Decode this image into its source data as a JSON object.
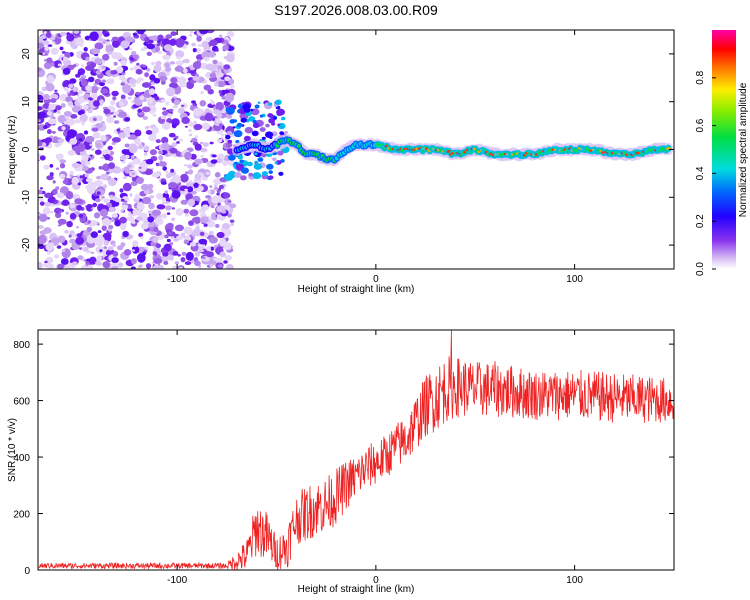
{
  "title": "S197.2026.008.03.00.R09",
  "chart_data": [
    {
      "type": "heatmap",
      "xlabel": "Height of straight line (km)",
      "ylabel": "Frequency (Hz)",
      "xlim": [
        -170,
        150
      ],
      "ylim": [
        -25,
        25
      ],
      "xticks": [
        -100,
        0,
        100
      ],
      "yticks": [
        -20,
        -10,
        0,
        10,
        20
      ],
      "colorbar": {
        "label": "Normalized spectral amplitude",
        "range": [
          0,
          1
        ],
        "ticks": [
          0.0,
          0.2,
          0.4,
          0.6,
          0.8
        ]
      },
      "noise_region_x": [
        -170,
        -72
      ],
      "signal_track": {
        "x": [
          -70,
          -60,
          -55,
          -50,
          -45,
          -40,
          -35,
          -30,
          -25,
          -20,
          -15,
          -10,
          -5,
          0,
          10,
          20,
          30,
          40,
          50,
          60,
          70,
          80,
          90,
          100,
          110,
          120,
          130,
          140,
          148
        ],
        "freq": [
          0,
          1,
          0,
          1,
          2,
          1,
          -1,
          -1,
          -2,
          -2,
          0,
          1,
          1,
          1,
          0,
          0,
          0,
          -1,
          0,
          -1,
          -1,
          -1,
          0,
          0,
          0,
          -1,
          -1,
          0,
          0
        ]
      }
    },
    {
      "type": "line",
      "xlabel": "Height of straight line (km)",
      "ylabel": "SNR (10 * v/v)",
      "xlim": [
        -170,
        150
      ],
      "ylim": [
        0,
        850
      ],
      "xticks": [
        -100,
        0,
        100
      ],
      "yticks": [
        0,
        200,
        400,
        600,
        800
      ],
      "series": [
        {
          "name": "SNR",
          "color": "#ee2222",
          "envelope_x": [
            -170,
            -75,
            -65,
            -60,
            -55,
            -50,
            -45,
            -40,
            -35,
            -30,
            -25,
            -20,
            -15,
            -10,
            -5,
            0,
            5,
            10,
            15,
            20,
            25,
            30,
            35,
            40,
            50,
            60,
            80,
            100,
            120,
            150
          ],
          "envelope_mean": [
            15,
            15,
            50,
            150,
            120,
            60,
            80,
            180,
            200,
            220,
            230,
            260,
            300,
            330,
            360,
            380,
            400,
            440,
            460,
            520,
            580,
            610,
            640,
            650,
            640,
            640,
            620,
            620,
            610,
            600
          ],
          "envelope_spread": [
            10,
            10,
            60,
            100,
            90,
            60,
            80,
            90,
            100,
            100,
            100,
            100,
            90,
            80,
            80,
            80,
            80,
            80,
            90,
            100,
            110,
            120,
            120,
            110,
            100,
            100,
            90,
            90,
            90,
            80
          ],
          "peak": {
            "x": 38,
            "y": 850
          }
        }
      ]
    }
  ]
}
